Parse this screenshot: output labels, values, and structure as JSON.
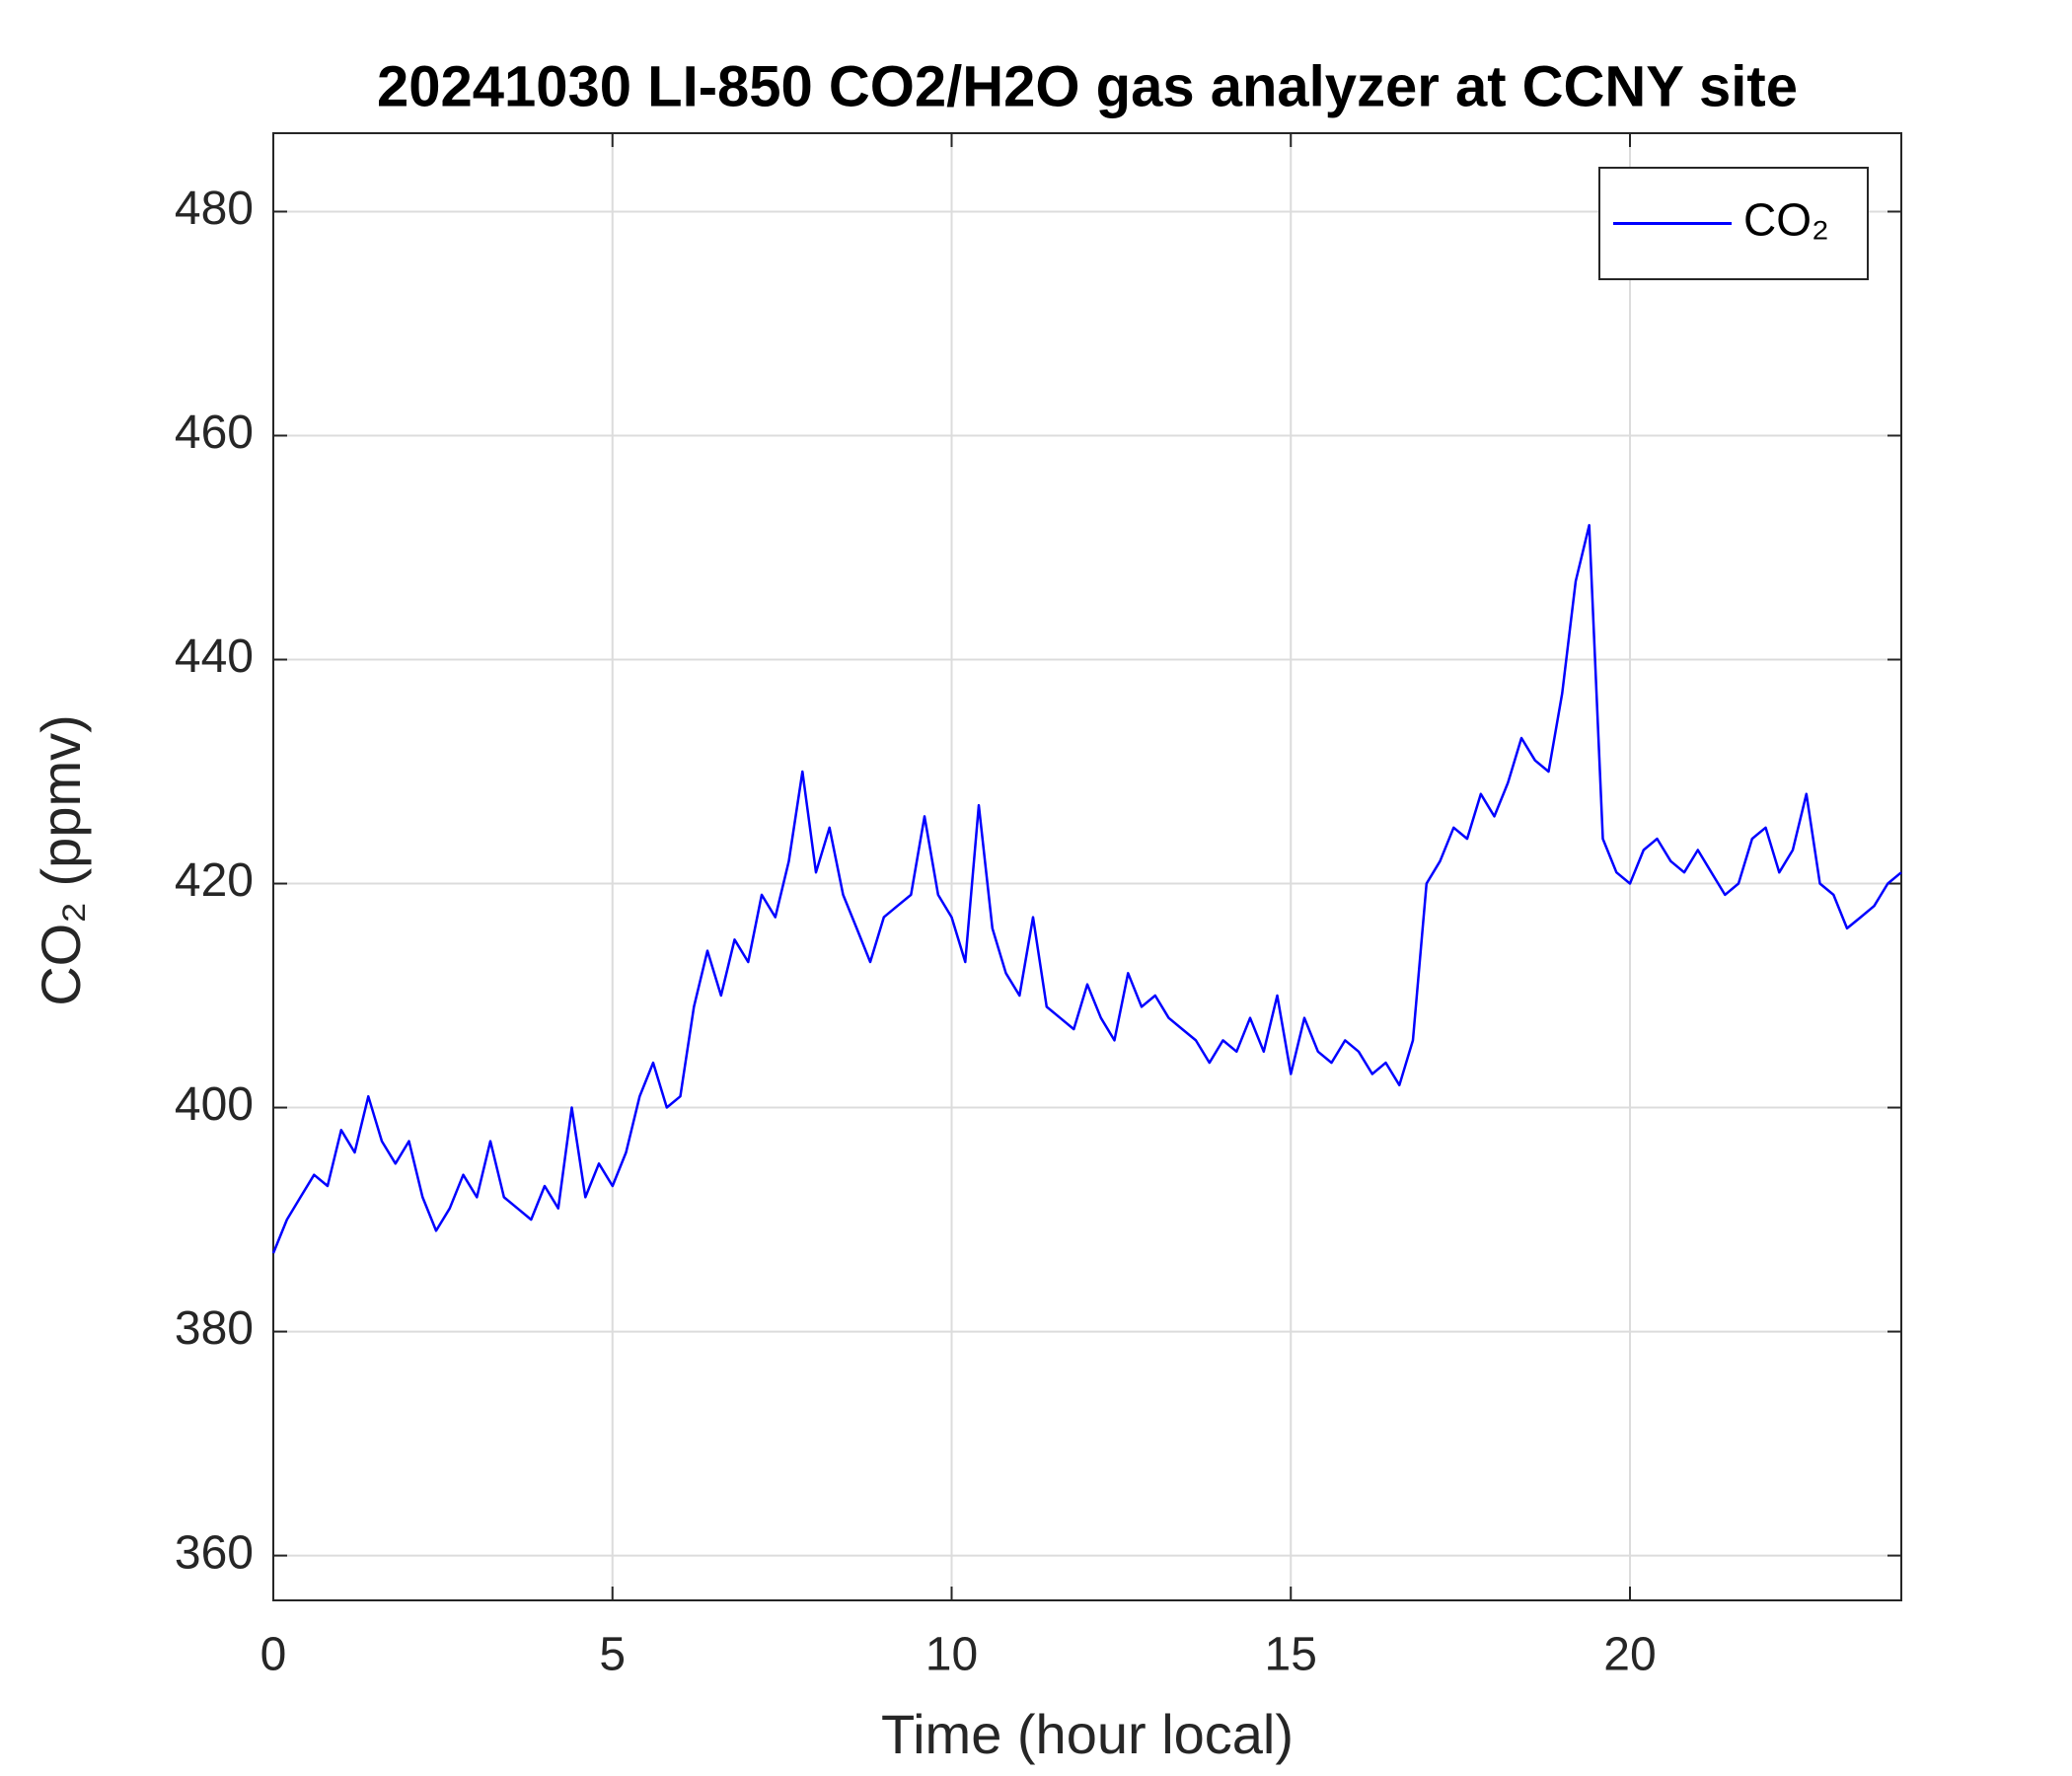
{
  "chart_data": {
    "type": "line",
    "title": "20241030 LI-850 CO2/H2O gas analyzer at CCNY site",
    "xlabel": "Time (hour local)",
    "ylabel": "CO₂ (ppmv)",
    "xlim": [
      0,
      24
    ],
    "ylim": [
      356,
      487
    ],
    "xticks": [
      0,
      5,
      10,
      15,
      20
    ],
    "yticks": [
      360,
      380,
      400,
      420,
      440,
      460,
      480
    ],
    "grid": true,
    "legend": "upper right",
    "x": [
      0,
      0.2,
      0.4,
      0.6,
      0.8,
      1,
      1.2,
      1.4,
      1.6,
      1.8,
      2,
      2.2,
      2.4,
      2.6,
      2.8,
      3,
      3.2,
      3.4,
      3.6,
      3.8,
      4,
      4.2,
      4.4,
      4.6,
      4.8,
      5,
      5.2,
      5.4,
      5.6,
      5.8,
      6,
      6.2,
      6.4,
      6.6,
      6.8,
      7,
      7.2,
      7.4,
      7.6,
      7.8,
      8,
      8.2,
      8.4,
      8.6,
      8.8,
      9,
      9.2,
      9.4,
      9.6,
      9.8,
      10,
      10.2,
      10.4,
      10.6,
      10.8,
      11,
      11.2,
      11.4,
      11.6,
      11.8,
      12,
      12.2,
      12.4,
      12.6,
      12.8,
      13,
      13.2,
      13.4,
      13.6,
      13.8,
      14,
      14.2,
      14.4,
      14.6,
      14.8,
      15,
      15.2,
      15.4,
      15.6,
      15.8,
      16,
      16.2,
      16.4,
      16.6,
      16.8,
      17,
      17.2,
      17.4,
      17.6,
      17.8,
      18,
      18.2,
      18.4,
      18.6,
      18.8,
      19,
      19.2,
      19.4,
      19.6,
      19.8,
      20,
      20.2,
      20.4,
      20.6,
      20.8,
      21,
      21.2,
      21.4,
      21.6,
      21.8,
      22,
      22.2,
      22.4,
      22.6,
      22.8,
      23,
      23.2,
      23.4,
      23.6,
      23.8,
      24
    ],
    "series": [
      {
        "name": "CO₂",
        "color": "#0000ff",
        "values": [
          387,
          390,
          392,
          394,
          393,
          398,
          396,
          401,
          397,
          395,
          397,
          392,
          389,
          391,
          394,
          392,
          397,
          392,
          391,
          390,
          393,
          391,
          400,
          392,
          395,
          393,
          396,
          401,
          404,
          400,
          401,
          409,
          414,
          410,
          415,
          413,
          419,
          417,
          422,
          430,
          421,
          425,
          419,
          416,
          413,
          417,
          418,
          419,
          426,
          419,
          417,
          413,
          427,
          416,
          412,
          410,
          417,
          409,
          408,
          407,
          411,
          408,
          406,
          412,
          409,
          410,
          408,
          407,
          406,
          404,
          406,
          405,
          408,
          405,
          410,
          403,
          408,
          405,
          404,
          406,
          405,
          403,
          404,
          402,
          406,
          420,
          422,
          425,
          424,
          428,
          426,
          429,
          433,
          431,
          430,
          437,
          447,
          452,
          424,
          421,
          420,
          423,
          424,
          422,
          421,
          423,
          421,
          419,
          420,
          424,
          425,
          421,
          423,
          428,
          420,
          419,
          416,
          417,
          418,
          420,
          421
        ]
      }
    ]
  }
}
